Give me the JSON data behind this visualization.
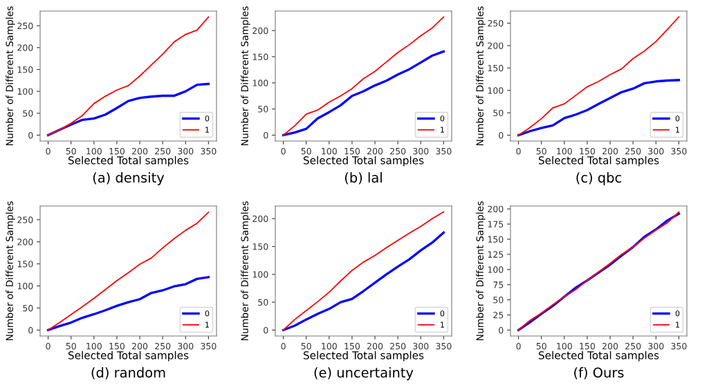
{
  "chart_data": [
    {
      "type": "line",
      "title": "(a) density",
      "xlabel": "Selected Total samples",
      "ylabel": "Number of Different Samples",
      "x": [
        0,
        25,
        50,
        75,
        100,
        125,
        150,
        175,
        200,
        225,
        250,
        275,
        300,
        325,
        350
      ],
      "xlim": [
        -17.5,
        367.5
      ],
      "xticks": [
        0,
        50,
        100,
        150,
        200,
        250,
        300,
        350
      ],
      "ylim": [
        -13.5,
        283.5
      ],
      "yticks": [
        0,
        50,
        100,
        150,
        200,
        250
      ],
      "legend": "bottom right",
      "grid": false,
      "series": [
        {
          "name": "0",
          "color": "#0000ff",
          "values": [
            0,
            12,
            24,
            35,
            38,
            47,
            62,
            78,
            85,
            88,
            90,
            90,
            100,
            115,
            117
          ]
        },
        {
          "name": "1",
          "color": "#ff0000",
          "values": [
            0,
            12,
            27,
            45,
            72,
            89,
            103,
            113,
            135,
            160,
            185,
            213,
            230,
            240,
            270
          ]
        }
      ]
    },
    {
      "type": "line",
      "title": "(b) lal",
      "xlabel": "Selected Total samples",
      "ylabel": "Number of Different Samples",
      "x": [
        0,
        25,
        50,
        75,
        100,
        125,
        150,
        175,
        200,
        225,
        250,
        275,
        300,
        325,
        350
      ],
      "xlim": [
        -17.5,
        367.5
      ],
      "xticks": [
        0,
        50,
        100,
        150,
        200,
        250,
        300,
        350
      ],
      "ylim": [
        -11.3,
        237.3
      ],
      "yticks": [
        0,
        50,
        100,
        150,
        200
      ],
      "legend": "bottom right",
      "grid": false,
      "series": [
        {
          "name": "0",
          "color": "#0000ff",
          "values": [
            0,
            5,
            12,
            32,
            44,
            57,
            75,
            84,
            95,
            104,
            116,
            126,
            139,
            152,
            160
          ]
        },
        {
          "name": "1",
          "color": "#ff0000",
          "values": [
            0,
            18,
            40,
            48,
            63,
            75,
            89,
            108,
            122,
            140,
            158,
            173,
            190,
            205,
            226
          ]
        }
      ]
    },
    {
      "type": "line",
      "title": "(c) qbc",
      "xlabel": "Selected Total samples",
      "ylabel": "Number of Different Samples",
      "x": [
        0,
        25,
        50,
        75,
        100,
        125,
        150,
        175,
        200,
        225,
        250,
        275,
        300,
        325,
        350
      ],
      "xlim": [
        -17.5,
        367.5
      ],
      "xticks": [
        0,
        50,
        100,
        150,
        200,
        250,
        300,
        350
      ],
      "ylim": [
        -13,
        277
      ],
      "yticks": [
        0,
        50,
        100,
        150,
        200,
        250
      ],
      "legend": "bottom right",
      "grid": false,
      "series": [
        {
          "name": "0",
          "color": "#0000ff",
          "values": [
            0,
            9,
            16,
            22,
            38,
            46,
            56,
            70,
            83,
            96,
            104,
            116,
            120,
            122,
            123
          ]
        },
        {
          "name": "1",
          "color": "#ff0000",
          "values": [
            0,
            17,
            37,
            61,
            70,
            89,
            108,
            120,
            135,
            148,
            171,
            188,
            209,
            236,
            264
          ]
        }
      ]
    },
    {
      "type": "line",
      "title": "(d) random",
      "xlabel": "Selected Total samples",
      "ylabel": "Number of Different Samples",
      "x": [
        0,
        25,
        50,
        75,
        100,
        125,
        150,
        175,
        200,
        225,
        250,
        275,
        300,
        325,
        350
      ],
      "xlim": [
        -17.5,
        367.5
      ],
      "xticks": [
        0,
        50,
        100,
        150,
        200,
        250,
        300,
        350
      ],
      "ylim": [
        -13.4,
        281
      ],
      "yticks": [
        0,
        50,
        100,
        150,
        200,
        250
      ],
      "legend": "bottom right",
      "grid": false,
      "series": [
        {
          "name": "0",
          "color": "#0000ff",
          "values": [
            0,
            9,
            17,
            28,
            36,
            45,
            55,
            63,
            70,
            84,
            90,
            99,
            104,
            116,
            120
          ]
        },
        {
          "name": "1",
          "color": "#ff0000",
          "values": [
            0,
            17,
            35,
            53,
            72,
            92,
            112,
            130,
            149,
            163,
            186,
            207,
            226,
            242,
            267
          ]
        }
      ]
    },
    {
      "type": "line",
      "title": "(e) uncertainty",
      "xlabel": "Selected Total samples",
      "ylabel": "Number of Different Samples",
      "x": [
        0,
        25,
        50,
        75,
        100,
        125,
        150,
        175,
        200,
        225,
        250,
        275,
        300,
        325,
        350
      ],
      "xlim": [
        -17.5,
        367.5
      ],
      "xticks": [
        0,
        50,
        100,
        150,
        200,
        250,
        300,
        350
      ],
      "ylim": [
        -10.6,
        222.6
      ],
      "yticks": [
        0,
        50,
        100,
        150,
        200
      ],
      "legend": "bottom right",
      "grid": false,
      "series": [
        {
          "name": "0",
          "color": "#0000ff",
          "values": [
            0,
            8,
            19,
            29,
            38,
            50,
            56,
            70,
            85,
            100,
            114,
            127,
            143,
            157,
            175
          ]
        },
        {
          "name": "1",
          "color": "#ff0000",
          "values": [
            0,
            19,
            35,
            51,
            68,
            88,
            107,
            122,
            134,
            148,
            161,
            174,
            186,
            200,
            212
          ]
        }
      ]
    },
    {
      "type": "line",
      "title": "(f) Ours",
      "xlabel": "Selected Total samples",
      "ylabel": "Number of Different Samples",
      "x": [
        0,
        25,
        50,
        75,
        100,
        125,
        150,
        175,
        200,
        225,
        250,
        275,
        300,
        325,
        350
      ],
      "xlim": [
        -17.5,
        367.5
      ],
      "xticks": [
        0,
        50,
        100,
        150,
        200,
        250,
        300,
        350
      ],
      "ylim": [
        -9.75,
        204.75
      ],
      "yticks": [
        0,
        25,
        50,
        75,
        100,
        125,
        150,
        175,
        200
      ],
      "legend": "bottom right",
      "grid": false,
      "series": [
        {
          "name": "0",
          "color": "#0000ff",
          "values": [
            0,
            13,
            27,
            40,
            55,
            70,
            82,
            95,
            108,
            123,
            137,
            154,
            166,
            181,
            192
          ]
        },
        {
          "name": "1",
          "color": "#ff0000",
          "values": [
            0,
            16,
            28,
            42,
            55,
            67,
            82,
            96,
            110,
            125,
            137,
            152,
            165,
            177,
            195
          ]
        }
      ]
    }
  ]
}
